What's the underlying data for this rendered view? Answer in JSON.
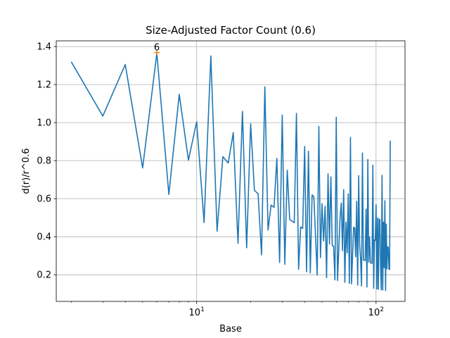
{
  "chart_data": {
    "type": "line",
    "title": "Size-Adjusted Factor Count (0.6)",
    "xlabel": "Base",
    "ylabel": "d(r)/r^0.6",
    "xscale": "log",
    "xlim": [
      1.65,
      145
    ],
    "ylim": [
      0.06,
      1.43
    ],
    "grid": true,
    "x_ticks": [
      {
        "value": 10,
        "base": "10",
        "exp": "1"
      },
      {
        "value": 100,
        "base": "10",
        "exp": "2"
      }
    ],
    "y_ticks": [
      {
        "value": 0.2,
        "label": "0.2"
      },
      {
        "value": 0.4,
        "label": "0.4"
      },
      {
        "value": 0.6,
        "label": "0.6"
      },
      {
        "value": 0.8,
        "label": "0.8"
      },
      {
        "value": 1.0,
        "label": "1.0"
      },
      {
        "value": 1.2,
        "label": "1.2"
      },
      {
        "value": 1.4,
        "label": "1.4"
      }
    ],
    "x_start": 2,
    "x_end": 120,
    "exponent": 0.6,
    "series": [
      {
        "name": "d(r)/r^0.6",
        "color": "#1f77b4"
      }
    ],
    "highlight": {
      "x": 6,
      "y": 1.3687,
      "label": "6",
      "color": "#ff7f0e",
      "marker": "+"
    }
  }
}
